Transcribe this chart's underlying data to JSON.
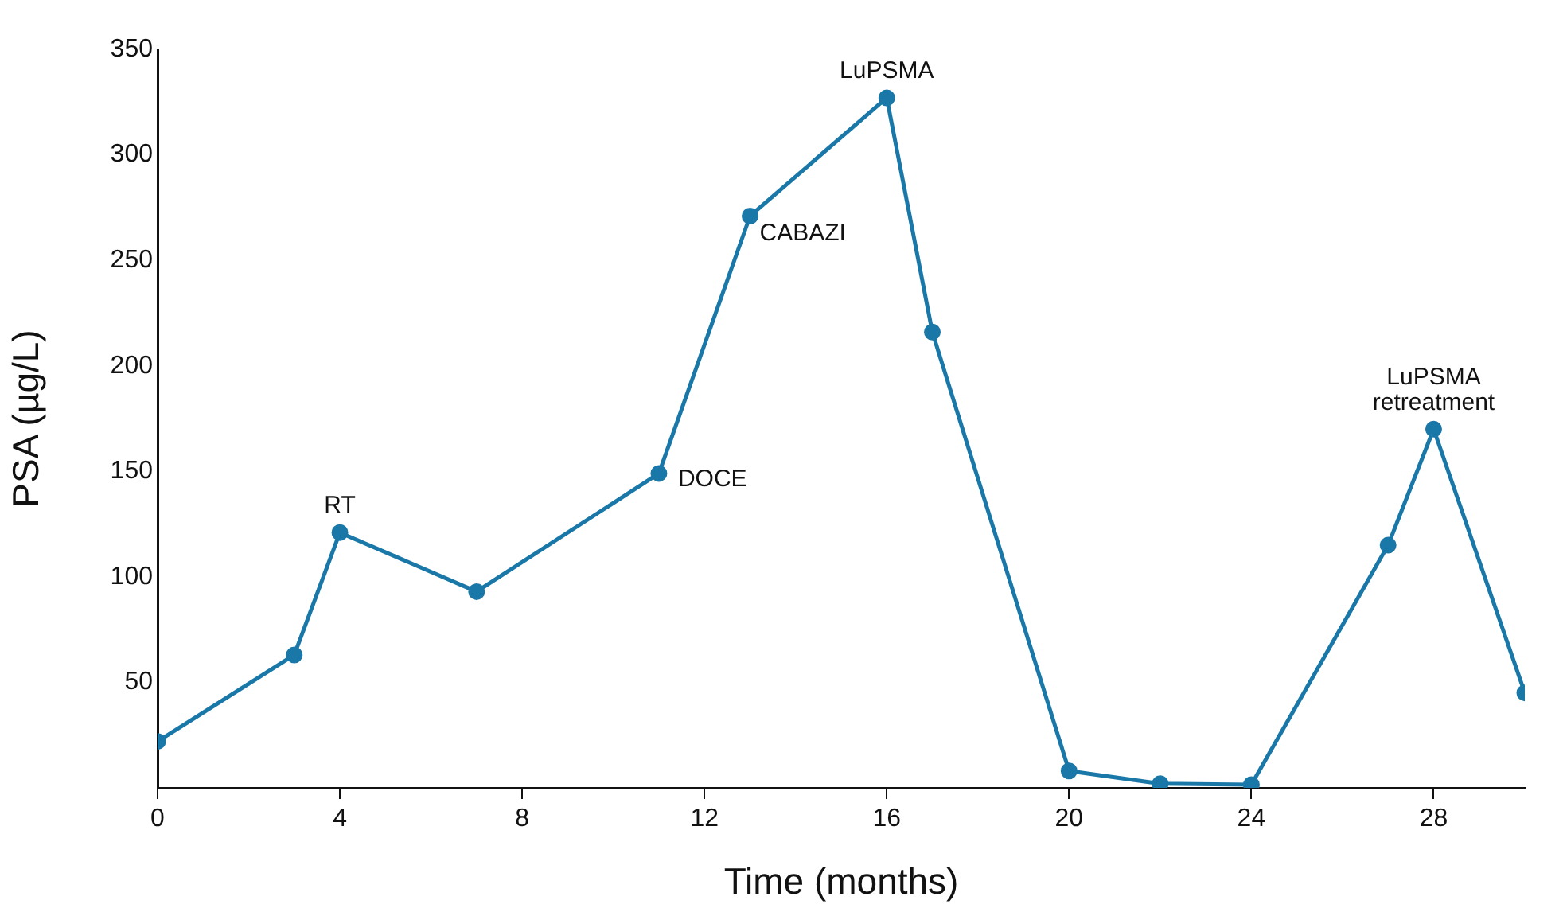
{
  "chart_data": {
    "type": "line",
    "xlabel": "Time (months)",
    "ylabel": "PSA (µg/L)",
    "x": [
      0,
      3,
      4,
      7,
      11,
      13,
      16,
      17,
      20,
      22,
      24,
      27,
      28,
      30
    ],
    "series": [
      {
        "color": "#1a78a8",
        "values": [
          22,
          63,
          121,
          93,
          149,
          271,
          327,
          216,
          8,
          2,
          1.5,
          115,
          170,
          45
        ]
      }
    ],
    "xlim": [
      0,
      30
    ],
    "xticks": [
      0,
      4,
      8,
      12,
      16,
      20,
      24,
      28
    ],
    "ylim": [
      0,
      350
    ],
    "yticks": [
      50,
      100,
      150,
      200,
      250,
      300,
      350
    ],
    "grid": false,
    "legend": false,
    "marker": "circle",
    "line_style": "solid",
    "annotations": [
      {
        "text": "RT",
        "x": 4,
        "y": 121
      },
      {
        "text": "DOCE",
        "x": 11,
        "y": 149
      },
      {
        "text": "CABAZI",
        "x": 13,
        "y": 271
      },
      {
        "text": "LuPSMA",
        "x": 16,
        "y": 327
      },
      {
        "text": "LuPSMA retreatment",
        "x": 28,
        "y": 170
      }
    ]
  }
}
